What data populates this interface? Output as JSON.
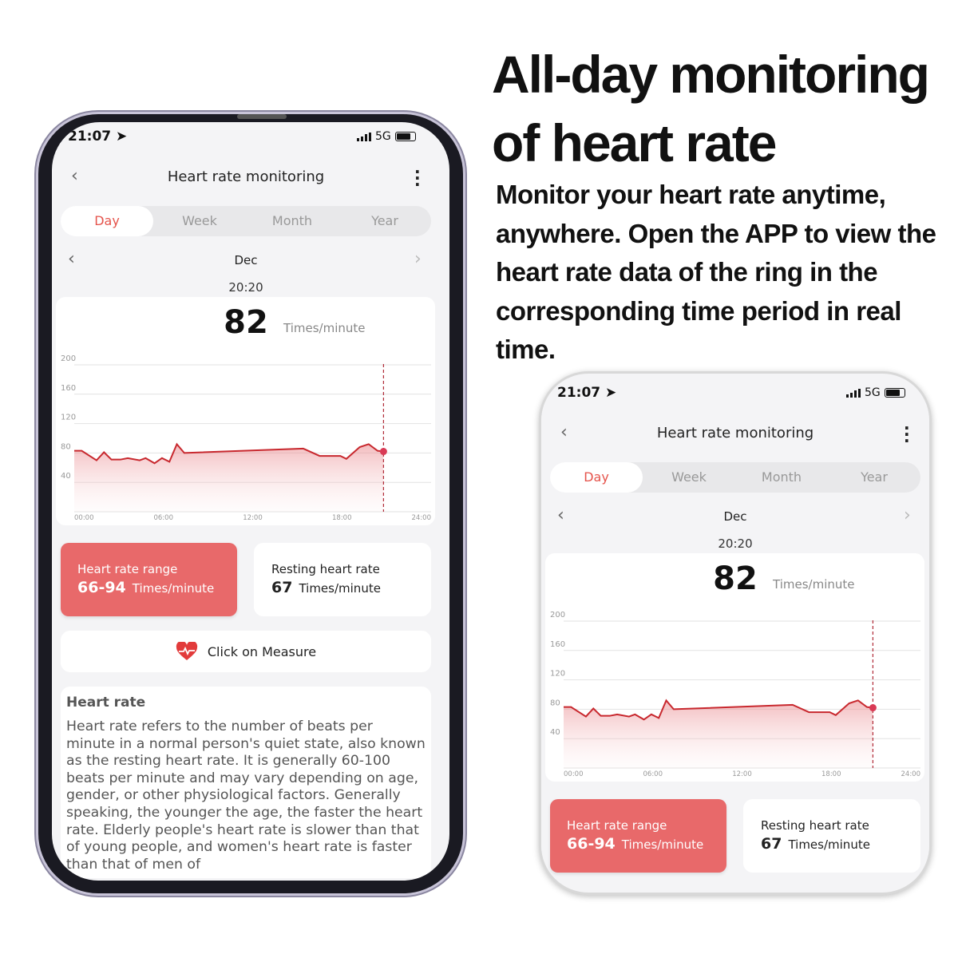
{
  "headline": "All-day monitoring of heart rate",
  "description": "Monitor your heart rate anytime, anywhere. Open the APP to view the heart rate data of the ring in the corresponding time period in real time.",
  "status": {
    "time": "21:07",
    "network": "5G"
  },
  "header": {
    "title": "Heart rate monitoring",
    "back_icon": "chevron-left-icon",
    "menu_icon": "more-vertical-icon"
  },
  "tabs": [
    {
      "label": "Day",
      "active": true
    },
    {
      "label": "Week"
    },
    {
      "label": "Month"
    },
    {
      "label": "Year"
    }
  ],
  "period": {
    "label": "Dec",
    "time": "20:20"
  },
  "current": {
    "value": "82",
    "unit": "Times/minute"
  },
  "summary": {
    "range_label": "Heart rate range",
    "range_value": "66-94",
    "range_unit": "Times/minute",
    "resting_label": "Resting heart rate",
    "resting_value": "67",
    "resting_unit": "Times/minute"
  },
  "measure": {
    "label": "Click on Measure",
    "icon": "heart-pulse-icon"
  },
  "info": {
    "title": "Heart rate",
    "body": "Heart rate refers to the number of beats per minute in a normal person's quiet state, also known as the resting heart rate. It is generally 60-100 beats per minute and may vary depending on age, gender, or other physiological factors. Generally speaking, the younger the age, the faster the heart rate. Elderly people's heart rate is slower than that of young people, and women's heart rate is faster than that of men of"
  },
  "colors": {
    "accent": "#e5534b",
    "line": "#c8282e",
    "card": "#e8696a"
  },
  "chart_data": {
    "type": "area",
    "x_ticks": [
      "00:00",
      "06:00",
      "12:00",
      "18:00",
      "24:00"
    ],
    "y_ticks": [
      200,
      160,
      120,
      80,
      40
    ],
    "ylim": [
      0,
      200
    ],
    "xlim_hours": [
      0,
      24
    ],
    "grid": true,
    "marker": {
      "x": 20.8,
      "y": 82
    },
    "series": [
      {
        "x": [
          0,
          0.5,
          1.5,
          2.0,
          2.5,
          3.1,
          3.6,
          4.4,
          4.8,
          5.4,
          5.9,
          6.4,
          6.9,
          7.4,
          15.4,
          16.5,
          17.9,
          18.3,
          19.2,
          19.8,
          20.4,
          20.8
        ],
        "y": [
          83,
          83,
          70,
          81,
          71,
          71,
          73,
          70,
          73,
          66,
          73,
          68,
          92,
          80,
          86,
          76,
          76,
          72,
          88,
          92,
          83,
          82
        ]
      }
    ]
  }
}
